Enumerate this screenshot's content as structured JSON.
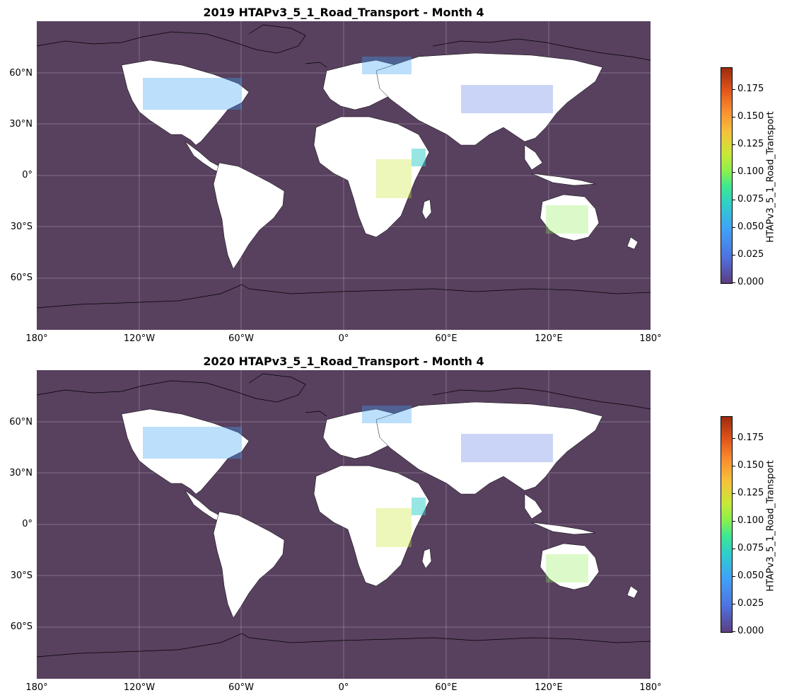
{
  "panels": [
    {
      "title": "2019 HTAPv3_5_1_Road_Transport - Month 4"
    },
    {
      "title": "2020 HTAPv3_5_1_Road_Transport - Month 4"
    }
  ],
  "lat_labels": [
    "60°N",
    "30°N",
    "0°",
    "30°S",
    "60°S"
  ],
  "lon_labels": [
    "180°",
    "120°W",
    "60°W",
    "0°",
    "60°E",
    "120°E",
    "180°"
  ],
  "colorbar": {
    "label": "HTAPv3_5_1_Road_Transport",
    "ticks": [
      "0.000",
      "0.025",
      "0.050",
      "0.075",
      "0.100",
      "0.125",
      "0.150",
      "0.175"
    ],
    "range": [
      0.0,
      0.195
    ],
    "colormap": "turbo"
  },
  "colors": {
    "ocean": "#58405f",
    "land": "#ffffff",
    "coast": "#000000"
  }
}
